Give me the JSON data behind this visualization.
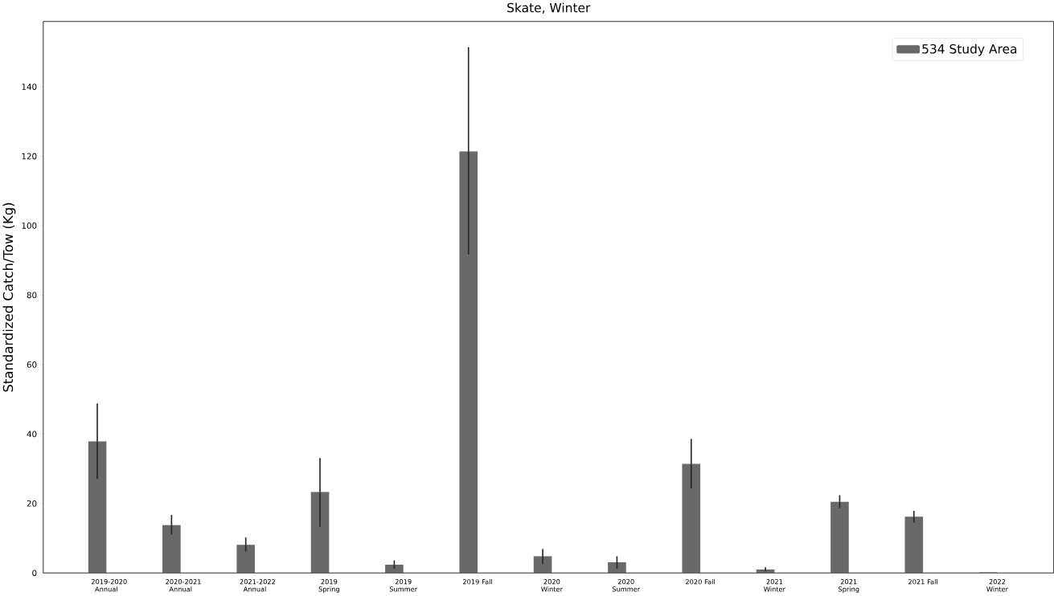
{
  "chart_data": {
    "type": "bar",
    "title": "Skate, Winter",
    "ylabel": "Standardized Catch/Tow (Kg)",
    "categories": [
      "2019-2020 Annual",
      "2020-2021 Annual",
      "2021-2022 Annual",
      "2019 Spring",
      "2019 Summer",
      "2019 Fall",
      "2020 Winter",
      "2020 Summer",
      "2020 Fall",
      "2021 Winter",
      "2021 Spring",
      "2021 Fall",
      "2022 Winter"
    ],
    "series": [
      {
        "name": "534 Study Area",
        "color": "#696969",
        "values": [
          37.9,
          13.8,
          8.1,
          23.3,
          2.4,
          121.4,
          4.8,
          3.1,
          31.4,
          1.0,
          20.5,
          16.2,
          0.2
        ],
        "errors": [
          [
            27.1,
            48.8
          ],
          [
            11.0,
            16.7
          ],
          [
            6.2,
            10.2
          ],
          [
            13.3,
            33.1
          ],
          [
            1.2,
            3.6
          ],
          [
            91.7,
            151.4
          ],
          [
            2.6,
            6.9
          ],
          [
            1.2,
            4.8
          ],
          [
            24.3,
            38.6
          ],
          [
            0.5,
            1.6
          ],
          [
            18.6,
            22.4
          ],
          [
            14.5,
            17.9
          ],
          null
        ]
      }
    ],
    "ylim": [
      0,
      158.8
    ],
    "yticks": [
      0,
      20,
      40,
      60,
      80,
      100,
      120,
      140
    ],
    "legend": "top right",
    "grid": false
  }
}
